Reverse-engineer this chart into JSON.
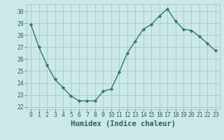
{
  "x": [
    0,
    1,
    2,
    3,
    4,
    5,
    6,
    7,
    8,
    9,
    10,
    11,
    12,
    13,
    14,
    15,
    16,
    17,
    18,
    19,
    20,
    21,
    22,
    23
  ],
  "y": [
    28.9,
    27.0,
    25.5,
    24.3,
    23.6,
    22.9,
    22.5,
    22.5,
    22.5,
    23.3,
    23.5,
    24.9,
    26.5,
    27.5,
    28.5,
    28.9,
    29.6,
    30.2,
    29.2,
    28.5,
    28.4,
    27.9,
    27.3,
    26.7
  ],
  "line_color": "#2d7a6e",
  "marker": "D",
  "marker_size": 2.2,
  "bg_color": "#cce8e8",
  "grid_color": "#aacece",
  "xlabel": "Humidex (Indice chaleur)",
  "ylim": [
    21.8,
    30.6
  ],
  "yticks": [
    22,
    23,
    24,
    25,
    26,
    27,
    28,
    29,
    30
  ],
  "xticks": [
    0,
    1,
    2,
    3,
    4,
    5,
    6,
    7,
    8,
    9,
    10,
    11,
    12,
    13,
    14,
    15,
    16,
    17,
    18,
    19,
    20,
    21,
    22,
    23
  ],
  "tick_fontsize": 5.8,
  "xlabel_fontsize": 7.5,
  "tick_color": "#2d6060",
  "line_width": 1.0
}
